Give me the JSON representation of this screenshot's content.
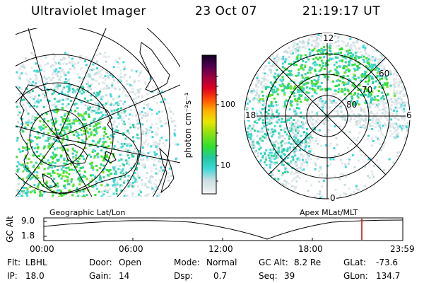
{
  "header": {
    "title": "Ultraviolet Imager",
    "date": "23 Oct 07",
    "time": "21:19:17 UT"
  },
  "left_panel": {
    "caption": "Geographic Lat/Lon"
  },
  "right_panel": {
    "caption": "Apex MLat/MLT",
    "mlt_labels": {
      "top": "12",
      "left": "18",
      "right": "6",
      "bottom": "0"
    },
    "lat_labels": [
      "60",
      "70",
      "80"
    ]
  },
  "colorbar": {
    "unit_label": "photon cm⁻²s⁻¹",
    "ticks": [
      "100",
      "10"
    ]
  },
  "altitude_plot": {
    "ylabel": "GC Alt",
    "yticks": [
      "9.0",
      "1.8"
    ],
    "xticks": [
      "00:00",
      "06:00",
      "12:00",
      "18:00",
      "23:59"
    ],
    "marker_color": "#cc0000"
  },
  "info": {
    "filter": {
      "label": "Flt:",
      "value": "LBHL"
    },
    "ip": {
      "label": "IP:",
      "value": "18.0"
    },
    "door": {
      "label": "Door:",
      "value": "Open"
    },
    "gain": {
      "label": "Gain:",
      "value": "14"
    },
    "mode": {
      "label": "Mode:",
      "value": "Normal"
    },
    "dsp": {
      "label": "Dsp:",
      "value": "0.7"
    },
    "gcalt": {
      "label": "GC Alt:",
      "value": "8.2 Re"
    },
    "seq": {
      "label": "Seq:",
      "value": "39"
    },
    "glat": {
      "label": "GLat:",
      "value": "-73.6"
    },
    "glon": {
      "label": "GLon:",
      "value": "134.7"
    }
  }
}
